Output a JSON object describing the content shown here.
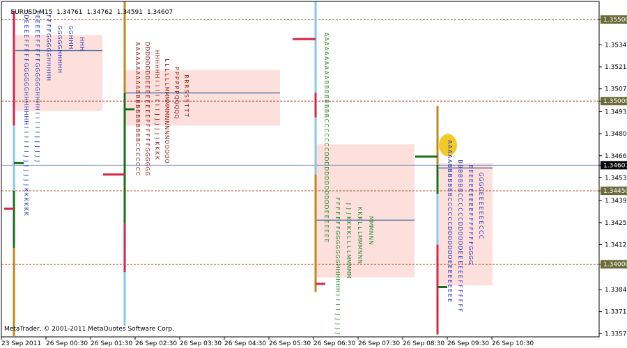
{
  "header": {
    "symbol": "EURUSD,M15",
    "open": "1.34761",
    "high": "1.34762",
    "low": "1.34591",
    "close": "1.34607"
  },
  "copyright": "MetaTrader, © 2001-2011 MetaQuotes Software Corp.",
  "colors": {
    "background": "#ffffff",
    "axis": "#000000",
    "grid_dotted": "#9a3c18",
    "value_area_fill": "#fde0dc",
    "poc_line": "#5577aa",
    "hline_blue": "#6f8fb5",
    "price_badge_brown": "#6b6b3a",
    "price_badge_black": "#000000",
    "highlight": "#f1c40f",
    "bar_red": "#d4244a",
    "bar_lightblue": "#87c7e8",
    "bar_green": "#1a6d1a",
    "bar_orange": "#c0881a",
    "letters_blue": "#2233bb",
    "letters_darkred": "#8b1a1a",
    "letters_green": "#2a8a2a"
  },
  "chart_data": {
    "type": "market-profile",
    "y_axis": {
      "ylim": [
        1.33555,
        1.35611
      ],
      "ticks": [
        "1.35500",
        "1.35345",
        "1.35210",
        "1.35075",
        "1.35000",
        "1.34935",
        "1.34800",
        "1.34665",
        "1.34607",
        "1.34530",
        "1.34450",
        "1.34390",
        "1.34255",
        "1.34120",
        "1.34000",
        "1.33845",
        "1.33710",
        "1.33575"
      ],
      "tick_values": [
        1.355,
        1.35345,
        1.3521,
        1.35075,
        1.35,
        1.34935,
        1.348,
        1.34665,
        1.34607,
        1.3453,
        1.3445,
        1.3439,
        1.34255,
        1.3412,
        1.34,
        1.33845,
        1.3371,
        1.33575
      ],
      "boxed_labels": [
        {
          "value": 1.355,
          "label": "1.35500",
          "style": "brown"
        },
        {
          "value": 1.35,
          "label": "1.35000",
          "style": "brown"
        },
        {
          "value": 1.34607,
          "label": "1.34607",
          "style": "black"
        },
        {
          "value": 1.3445,
          "label": "1.34450",
          "style": "brown"
        },
        {
          "value": 1.34,
          "label": "1.34000",
          "style": "brown"
        }
      ]
    },
    "x_axis": {
      "ticks": [
        "23 Sep 2011",
        "26 Sep 00:30",
        "26 Sep 01:30",
        "26 Sep 02:30",
        "26 Sep 03:30",
        "26 Sep 04:30",
        "26 Sep 05:30",
        "26 Sep 06:30",
        "26 Sep 07:30",
        "26 Sep 08:30",
        "26 Sep 09:30",
        "26 Sep 10:30"
      ]
    },
    "dotted_levels": [
      1.355,
      1.35,
      1.3445,
      1.34
    ],
    "current_price": 1.34607,
    "profiles": [
      {
        "value_area": [
          1.35405,
          1.3494
        ],
        "poc": 1.3531,
        "open_mark": 1.3434,
        "close_mark": 1.3462,
        "bar": [
          {
            "from": 1.3561,
            "to": 1.3385,
            "segments": [
              [
                "red",
                1.3555,
                1.3485
              ],
              [
                "lightblue",
                1.3485,
                1.3445
              ],
              [
                "green",
                1.3445,
                1.341
              ],
              [
                "orange",
                1.341,
                1.3356
              ]
            ]
          }
        ],
        "columns": [
          {
            "color": "blue",
            "letters": "CDEEEEFFFFFGGGGGGHHHHHHHIIIIIIJJJJJJJKKKKKK",
            "top": 1.35545
          },
          {
            "color": "blue",
            "letters": "EEEEEEFFFFFGGGGGGHHHHIIIIIJJJJJJ",
            "top": 1.35545
          },
          {
            "color": "blue",
            "letters": "FFFFGGGGGHHHHH",
            "top": 1.3552
          },
          {
            "color": "blue",
            "letters": "GGGGGHHHHH",
            "top": 1.3545
          },
          {
            "color": "blue",
            "letters": "GGHHH",
            "top": 1.3545
          },
          {
            "color": "blue",
            "letters": "HHH",
            "top": 1.3538
          }
        ]
      },
      {
        "value_area": [
          1.3519,
          1.3485
        ],
        "poc": 1.3505,
        "open_mark": 1.3455,
        "close_mark": 1.3495,
        "bar": [
          {
            "from": 1.3561,
            "to": 1.3362,
            "segments": [
              [
                "orange",
                1.3561,
                1.3505
              ],
              [
                "green",
                1.3505,
                1.3425
              ],
              [
                "red",
                1.3425,
                1.3395
              ],
              [
                "lightblue",
                1.3395,
                1.3362
              ]
            ]
          }
        ],
        "columns": [
          {
            "color": "darkred",
            "letters": "AAAAAAAAAABBBBBBBBBBBCCCCCCC",
            "top": 1.3535
          },
          {
            "color": "darkred",
            "letters": "DDDDDDDDEEEEEEEEFFFFFFGGGGGG",
            "top": 1.3535
          },
          {
            "color": "darkred",
            "letters": "HHHHHHIIIIIIIJJJJJJKKKK",
            "top": 1.353
          },
          {
            "color": "darkred",
            "letters": "LLLLLLMMMMMMNNNNNOOOOO",
            "top": 1.3525
          },
          {
            "color": "darkred",
            "letters": "PPPPPPQQQQQ",
            "top": 1.352
          },
          {
            "color": "darkred",
            "letters": "RRRSSSTTT",
            "top": 1.3515
          }
        ]
      },
      {
        "value_area": [
          1.34735,
          1.3392
        ],
        "poc": 1.3427,
        "open_mark": 1.3538,
        "close_mark": 1.3388,
        "bar": [
          {
            "from": 1.3561,
            "to": 1.3383,
            "segments": [
              [
                "lightblue",
                1.3561,
                1.3505
              ],
              [
                "red",
                1.3505,
                1.349
              ],
              [
                "lightblue",
                1.349,
                1.3455
              ],
              [
                "orange",
                1.3455,
                1.3383
              ]
            ]
          }
        ],
        "columns": [
          {
            "color": "green",
            "letters": "AAAAAAAAAABBBBBBBBCCCCCCCDDDDDDDDDDDDEEEEEEE",
            "top": 1.3541
          },
          {
            "color": "green",
            "letters": "FFFFFFFGGGGGGGHHHHHHIIIIJJJJJ",
            "top": 1.344
          },
          {
            "color": "green",
            "letters": "JJJKKKKLLLLMMMMM",
            "top": 1.3437
          },
          {
            "color": "green",
            "letters": "KKKLLLMMMNNN",
            "top": 1.3434
          },
          {
            "color": "green",
            "letters": "MMMNNN",
            "top": 1.3428
          }
        ]
      },
      {
        "value_area": [
          1.3462,
          1.3387
        ],
        "poc": 1.3459,
        "open_mark": 1.3466,
        "close_mark": 1.3386,
        "highlight": 1.3473,
        "bar": [
          {
            "from": 1.3497,
            "to": 1.3357,
            "segments": [
              [
                "orange",
                1.3497,
                1.3461
              ],
              [
                "green",
                1.3461,
                1.3443
              ],
              [
                "lightblue",
                1.3443,
                1.3412
              ],
              [
                "red",
                1.3412,
                1.3357
              ]
            ]
          }
        ],
        "columns": [
          {
            "color": "blue",
            "letters": "AAAAABBBBBBBCCCCCCDDDDDDDEEEEEEEEE",
            "top": 1.3475
          },
          {
            "color": "blue",
            "letters": "BBBBBBBCCCCCCDDDDDDEEEEEEFFFFFFF",
            "top": 1.3463
          },
          {
            "color": "blue",
            "letters": "EEEEEEEEEEFFFFFFFGGGG",
            "top": 1.346
          },
          {
            "color": "blue",
            "letters": "GGGGEEEEEEECCC",
            "top": 1.3455
          }
        ]
      }
    ]
  }
}
